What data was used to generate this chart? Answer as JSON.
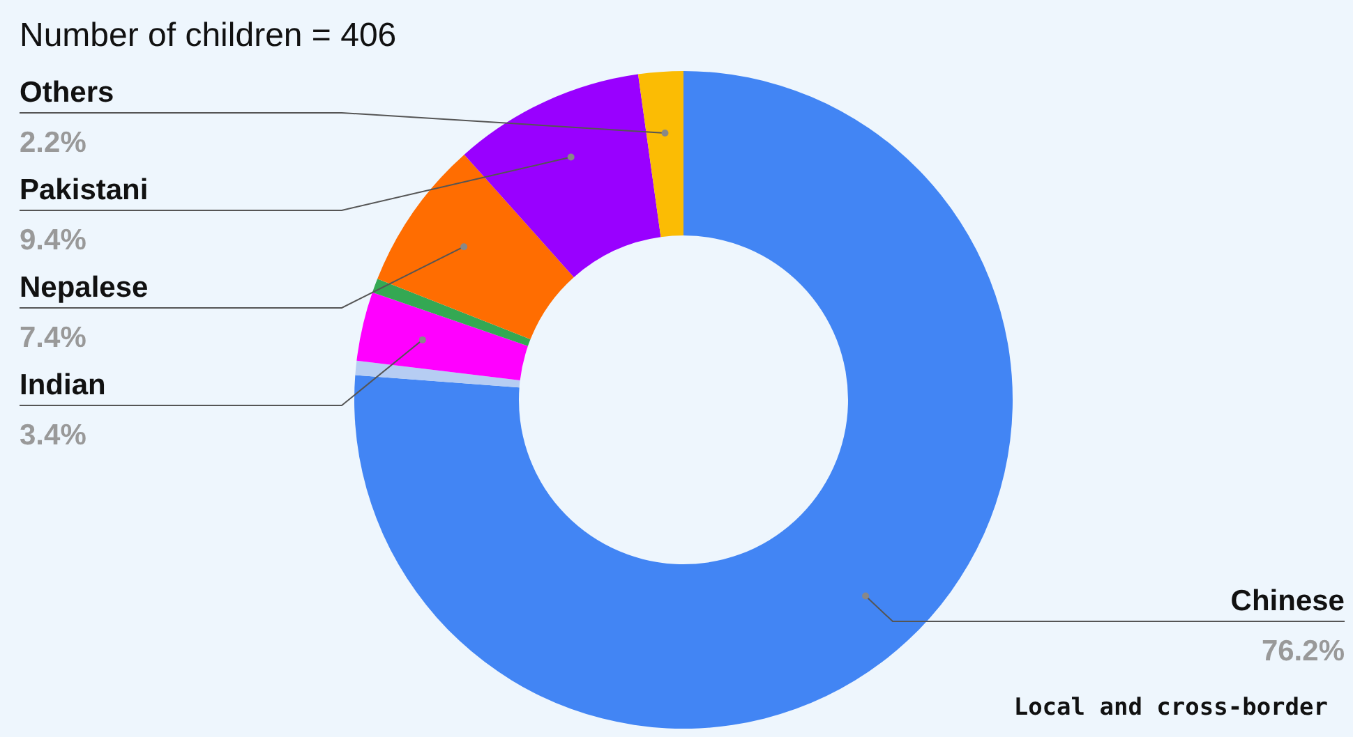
{
  "chart_data": {
    "type": "donut",
    "title": "Number of children = 406",
    "categories": [
      "Chinese",
      null,
      "Indian",
      null,
      "Nepalese",
      "Pakistani",
      "Others"
    ],
    "values": [
      76.2,
      0.7,
      3.4,
      0.7,
      7.4,
      9.4,
      2.2
    ],
    "value_labels": [
      "76.2%",
      null,
      "3.4%",
      null,
      "7.4%",
      "9.4%",
      "2.2%"
    ],
    "colors": [
      "#4285f4",
      "#b6cdf3",
      "#ff00ff",
      "#34a853",
      "#ff6d01",
      "#9900ff",
      "#fbbc04"
    ],
    "annotations": [
      "Local and cross-border"
    ]
  }
}
